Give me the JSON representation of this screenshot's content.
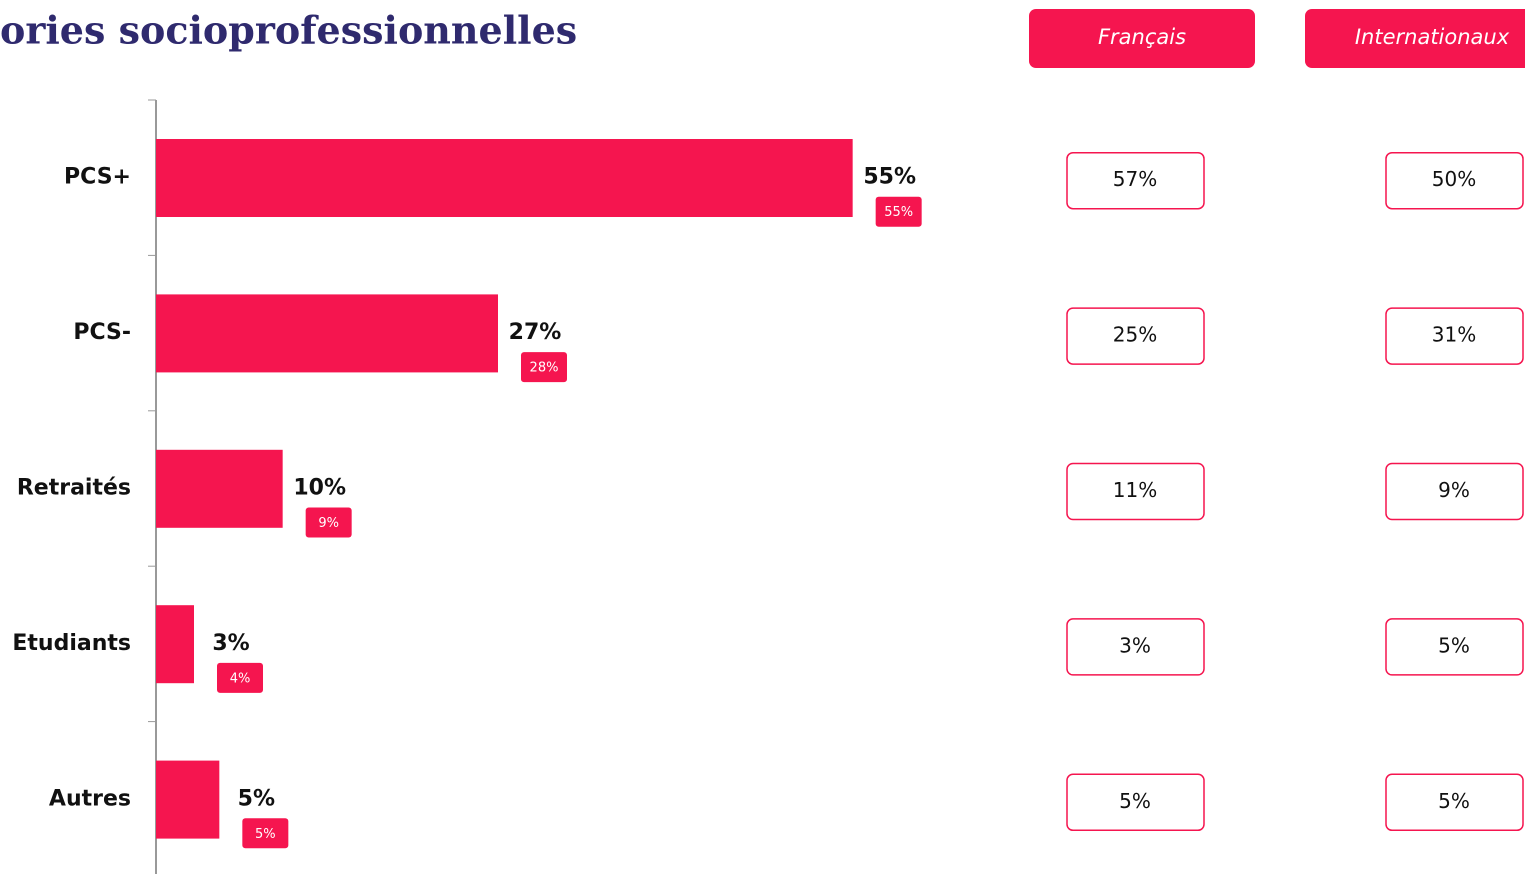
{
  "chart_data": {
    "type": "bar",
    "orientation": "horizontal",
    "title": "ories socioprofessionnelles",
    "categories": [
      "PCS+",
      "PCS-",
      "Retraités",
      "Etudiants",
      "Autres"
    ],
    "xlim": [
      0,
      60
    ],
    "series": [
      {
        "color": "#f5154f",
        "values": [
          55,
          27,
          10,
          3,
          5
        ],
        "value_labels": [
          "55%",
          "27%",
          "10%",
          "3%",
          "5%"
        ]
      },
      {
        "color": "#f5154f",
        "values": [
          55,
          28,
          9,
          4,
          5
        ],
        "value_labels": [
          "55%",
          "28%",
          "9%",
          "4%",
          "5%"
        ]
      }
    ]
  },
  "table": {
    "headers": [
      "Français",
      "Internationaux"
    ],
    "rows": [
      [
        "57%",
        "50%"
      ],
      [
        "25%",
        "31%"
      ],
      [
        "11%",
        "9%"
      ],
      [
        "3%",
        "5%"
      ],
      [
        "5%",
        "5%"
      ]
    ]
  }
}
